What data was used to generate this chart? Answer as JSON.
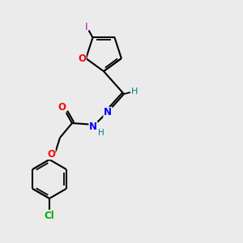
{
  "background_color": "#ebebeb",
  "bond_color": "#000000",
  "atom_colors": {
    "O": "#ff0000",
    "N": "#0000ff",
    "Cl": "#00aa00",
    "I": "#cc00cc",
    "H": "#008080",
    "C": "#000000"
  },
  "figsize": [
    3.0,
    3.0
  ],
  "dpi": 100
}
